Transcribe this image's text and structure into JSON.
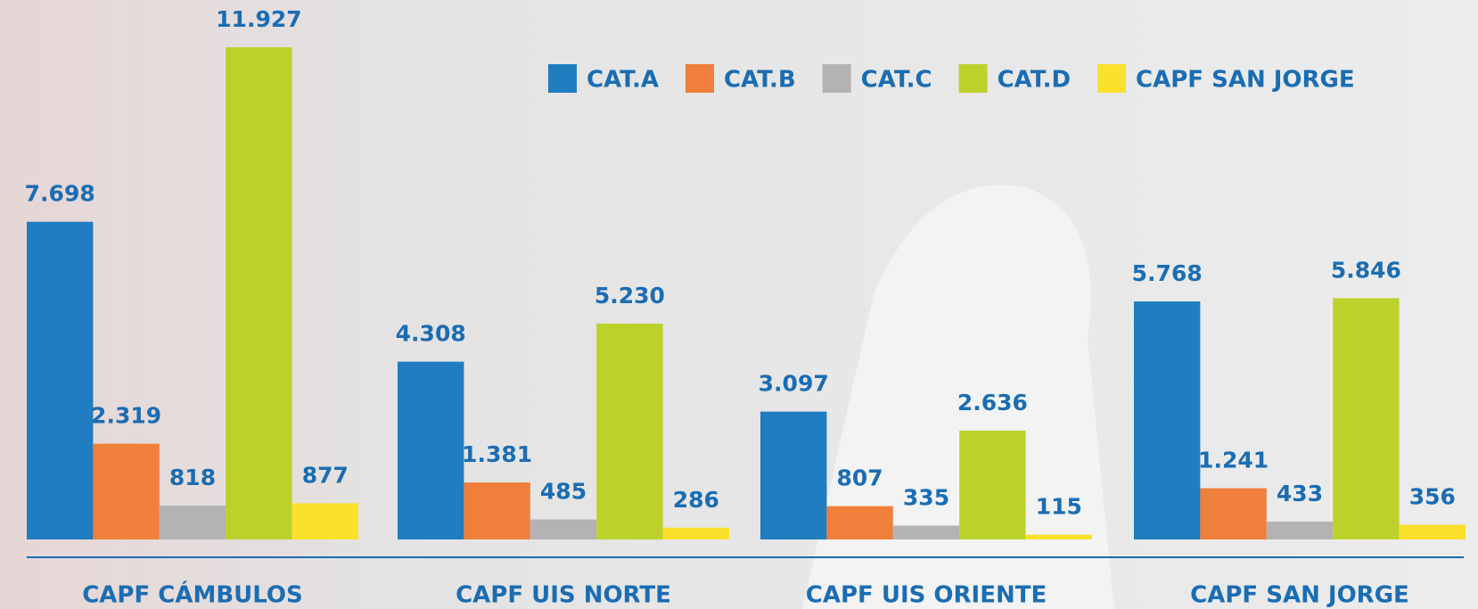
{
  "chart_data": {
    "type": "bar",
    "categories": [
      "CAPF CÁMBULOS",
      "CAPF UIS NORTE",
      "CAPF UIS ORIENTE",
      "CAPF SAN JORGE"
    ],
    "series": [
      {
        "name": "CAT.A",
        "color": "#1f7dc0",
        "values": [
          7698,
          4308,
          3097,
          5768
        ],
        "value_labels": [
          "7.698",
          "4.308",
          "3.097",
          "5.768"
        ]
      },
      {
        "name": "CAT.B",
        "color": "#ef7f3a",
        "values": [
          2319,
          1381,
          807,
          1241
        ],
        "value_labels": [
          "2.319",
          "1.381",
          "807",
          "1.241"
        ]
      },
      {
        "name": "CAT.C",
        "color": "#b3b3b3",
        "values": [
          818,
          485,
          335,
          433
        ]
      },
      {
        "name": "CAT.D",
        "color": "#bcd22b",
        "values": [
          11927,
          5230,
          2636,
          5846
        ],
        "value_labels": [
          "11.927",
          "5.230",
          "2.636",
          "5.846"
        ]
      },
      {
        "name": "CAPF SAN JORGE",
        "color": "#fbe02c",
        "values": [
          877,
          286,
          115,
          356
        ]
      }
    ]
  }
}
